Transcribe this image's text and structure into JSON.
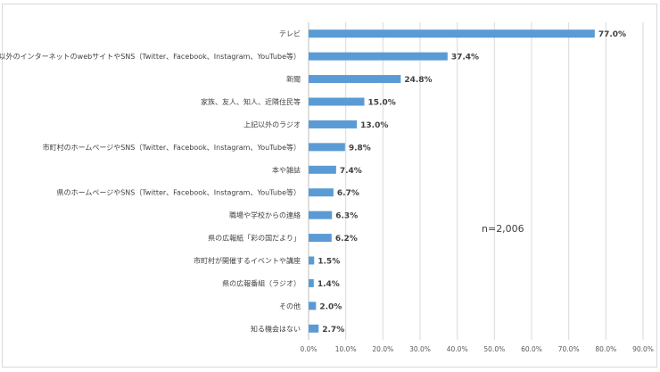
{
  "chart_data": {
    "type": "bar",
    "orientation": "horizontal",
    "categories": [
      "テレビ",
      "上記以外のインターネットのwebサイトやSNS（Twitter、Facebook、Instagram、YouTube等）",
      "新聞",
      "家族、友人、知人、近隣住民等",
      "上記以外のラジオ",
      "市町村のホームページやSNS（Twitter、Facebook、Instagram、YouTube等）",
      "本や雑誌",
      "県のホームページやSNS（Twitter、Facebook、Instagram、YouTube等）",
      "職場や学校からの連絡",
      "県の広報紙「彩の国だより」",
      "市町村が開催するイベントや講座",
      "県の広報番組（ラジオ）",
      "その他",
      "知る機会はない"
    ],
    "values": [
      77.0,
      37.4,
      24.8,
      15.0,
      13.0,
      9.8,
      7.4,
      6.7,
      6.3,
      6.2,
      1.5,
      1.4,
      2.0,
      2.7
    ],
    "value_labels": [
      "77.0%",
      "37.4%",
      "24.8%",
      "15.0%",
      "13.0%",
      "9.8%",
      "7.4%",
      "6.7%",
      "6.3%",
      "6.2%",
      "1.5%",
      "1.4%",
      "2.0%",
      "2.7%"
    ],
    "x_ticks": [
      "0.0%",
      "10.0%",
      "20.0%",
      "30.0%",
      "40.0%",
      "50.0%",
      "60.0%",
      "70.0%",
      "80.0%",
      "90.0%"
    ],
    "xlim": [
      0,
      90
    ],
    "annotation": "n=2,006",
    "bar_color": "#5b9bd5",
    "grid": true,
    "title": "",
    "xlabel": "",
    "ylabel": ""
  }
}
